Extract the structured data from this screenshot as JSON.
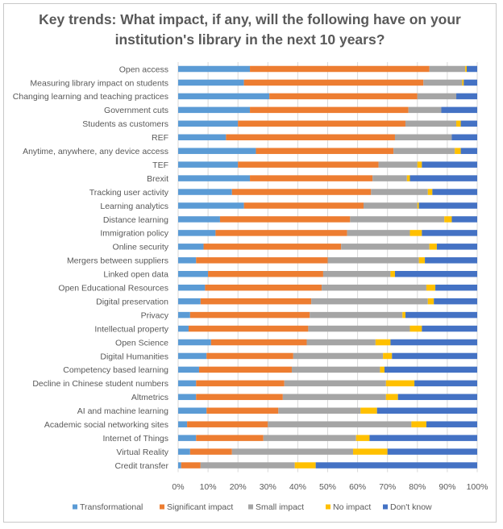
{
  "chart_data": {
    "type": "bar",
    "orientation": "horizontal",
    "stacked": true,
    "title": "Key trends: What impact, if any, will the following have on your institution's library in the next 10 years?",
    "title_lines": [
      "Key trends: What impact, if any, will the following have on your",
      "institution's library in the next 10 years?"
    ],
    "xlim": [
      0,
      100
    ],
    "x_ticks": [
      "0%",
      "10%",
      "20%",
      "30%",
      "40%",
      "50%",
      "60%",
      "70%",
      "80%",
      "90%",
      "100%"
    ],
    "legend_position": "bottom",
    "colors": [
      "#5b9bd5",
      "#ed7d31",
      "#a5a5a5",
      "#ffc000",
      "#4472c4"
    ],
    "categories": [
      "Open access",
      "Measuring library impact on students",
      "Changing learning and teaching practices",
      "Government cuts",
      "Students as customers",
      "REF",
      "Anytime, anywhere, any device access",
      "TEF",
      "Brexit",
      "Tracking user activity",
      "Learning analytics",
      "Distance learning",
      "Immigration policy",
      "Online security",
      "Mergers between suppliers",
      "Linked open data",
      "Open Educational Resources",
      "Digital preservation",
      "Privacy",
      "Intellectual property",
      "Open Science",
      "Digital Humanities",
      "Competency based learning",
      "Decline in Chinese student numbers",
      "Altmetrics",
      "AI and machine learning",
      "Academic social networking sites",
      "Internet of Things",
      "Virtual Reality",
      "Credit transfer"
    ],
    "series": [
      {
        "name": "Transformational",
        "values": [
          24,
          22,
          30.5,
          24,
          20,
          16,
          26,
          20,
          24,
          18,
          22,
          14,
          12.5,
          8.5,
          6,
          10,
          9,
          7.5,
          4,
          3.5,
          11,
          9.5,
          7,
          6,
          6,
          9.5,
          3,
          6,
          4,
          1
        ]
      },
      {
        "name": "Significant impact",
        "values": [
          60,
          60,
          49.5,
          53,
          56,
          56.5,
          46,
          47,
          41,
          46.5,
          40,
          43.5,
          44,
          46,
          44,
          38.5,
          39,
          37,
          40,
          40,
          32,
          29,
          31,
          29.5,
          29,
          24,
          27,
          22.5,
          14,
          6.5
        ]
      },
      {
        "name": "Small impact",
        "values": [
          12,
          13,
          13,
          11,
          17,
          19,
          20.5,
          13,
          11.5,
          19,
          18,
          31.5,
          21,
          29.5,
          30.5,
          22.5,
          35,
          39,
          31,
          34,
          23,
          30,
          29.5,
          34,
          34.5,
          27.5,
          48,
          31,
          40.5,
          31.5
        ]
      },
      {
        "name": "No impact",
        "values": [
          0.5,
          0.5,
          0,
          0,
          1.5,
          0,
          2,
          1.5,
          1,
          1.5,
          0.5,
          2.5,
          4,
          2.5,
          2,
          1.5,
          3,
          2,
          1,
          4,
          5,
          3,
          1.5,
          9.5,
          4,
          5.5,
          5,
          4.5,
          11.5,
          7
        ]
      },
      {
        "name": "Don't know",
        "values": [
          3.5,
          4.5,
          7,
          12,
          5.5,
          8.5,
          5.5,
          18.5,
          22.5,
          15,
          19.5,
          8.5,
          18.5,
          13.5,
          17.5,
          27.5,
          14,
          14.5,
          24,
          18.5,
          29,
          28.5,
          31,
          21,
          26.5,
          33.5,
          17,
          36,
          30,
          54
        ]
      }
    ]
  }
}
